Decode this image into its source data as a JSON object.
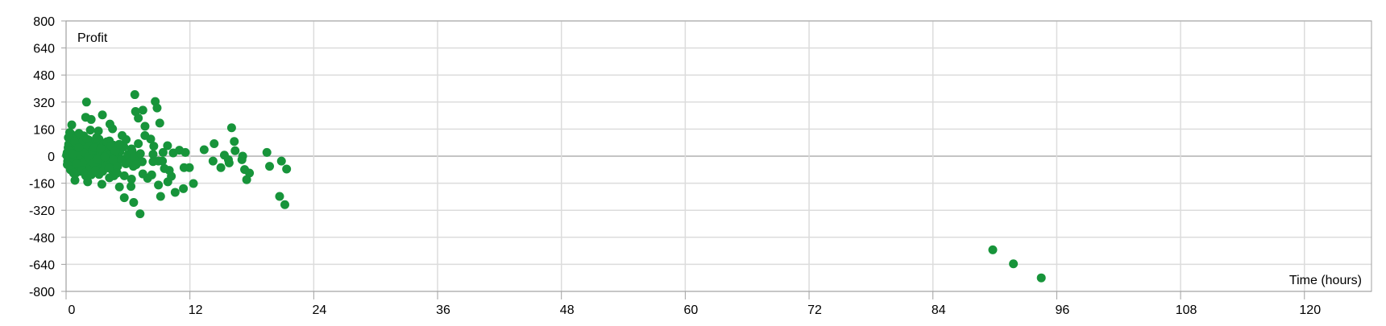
{
  "chart_data": {
    "type": "scatter",
    "ylabel": "Profit",
    "xlabel": "Time (hours)",
    "xlim": [
      0,
      126.5
    ],
    "ylim": [
      -800,
      800
    ],
    "xticks": [
      0,
      12,
      24,
      36,
      48,
      60,
      72,
      84,
      96,
      108,
      120
    ],
    "yticks": [
      800,
      640,
      480,
      320,
      160,
      0,
      -160,
      -320,
      -480,
      -640,
      -800
    ],
    "grid": true,
    "legend": "none",
    "point_color": "#17943a",
    "points": [
      [
        6.66,
        364
      ],
      [
        8.64,
        323
      ],
      [
        8.82,
        285
      ],
      [
        7.44,
        272
      ],
      [
        6.73,
        264
      ],
      [
        7.0,
        225
      ],
      [
        9.08,
        196
      ],
      [
        7.65,
        177
      ],
      [
        1.98,
        320
      ],
      [
        1.9,
        230
      ],
      [
        2.43,
        217
      ],
      [
        3.52,
        244
      ],
      [
        0.55,
        185
      ],
      [
        4.25,
        190
      ],
      [
        4.5,
        162
      ],
      [
        2.35,
        154
      ],
      [
        3.13,
        149
      ],
      [
        5.43,
        122
      ],
      [
        5.82,
        98
      ],
      [
        7.64,
        122
      ],
      [
        8.2,
        101
      ],
      [
        7.0,
        74
      ],
      [
        8.5,
        59
      ],
      [
        9.83,
        62
      ],
      [
        9.4,
        22
      ],
      [
        8.43,
        11
      ],
      [
        10.38,
        19
      ],
      [
        10.98,
        35
      ],
      [
        11.56,
        22
      ],
      [
        13.38,
        38
      ],
      [
        14.35,
        74
      ],
      [
        16.04,
        168
      ],
      [
        16.3,
        87
      ],
      [
        16.38,
        32
      ],
      [
        15.34,
        6
      ],
      [
        15.73,
        -21
      ],
      [
        15.8,
        -40
      ],
      [
        14.24,
        -29
      ],
      [
        15.0,
        -68
      ],
      [
        17.11,
        0
      ],
      [
        17.04,
        -21
      ],
      [
        17.3,
        -79
      ],
      [
        17.77,
        -100
      ],
      [
        17.5,
        -139
      ],
      [
        19.46,
        22
      ],
      [
        19.72,
        -60
      ],
      [
        20.87,
        -29
      ],
      [
        21.37,
        -76
      ],
      [
        20.69,
        -238
      ],
      [
        21.2,
        -287
      ],
      [
        12.34,
        -162
      ],
      [
        11.37,
        -192
      ],
      [
        10.57,
        -214
      ],
      [
        11.43,
        -68
      ],
      [
        11.95,
        -68
      ],
      [
        10.2,
        -119
      ],
      [
        9.86,
        -152
      ],
      [
        10.0,
        -84
      ],
      [
        9.53,
        -73
      ],
      [
        9.16,
        -238
      ],
      [
        8.95,
        -171
      ],
      [
        8.3,
        -111
      ],
      [
        7.9,
        -131
      ],
      [
        7.44,
        -105
      ],
      [
        7.17,
        -341
      ],
      [
        6.55,
        -274
      ],
      [
        5.64,
        -246
      ],
      [
        5.17,
        -182
      ],
      [
        6.29,
        -179
      ],
      [
        6.34,
        -136
      ],
      [
        5.64,
        -116
      ],
      [
        3.47,
        -166
      ],
      [
        4.2,
        -128
      ],
      [
        4.64,
        -116
      ],
      [
        2.09,
        -152
      ],
      [
        0.86,
        -143
      ],
      [
        1.9,
        -116
      ],
      [
        3.2,
        -108
      ],
      [
        7.38,
        -33
      ],
      [
        8.95,
        -29
      ],
      [
        9.34,
        -29
      ],
      [
        8.43,
        -32
      ],
      [
        6.52,
        -60
      ],
      [
        7.07,
        -21
      ],
      [
        6.34,
        43
      ],
      [
        5.82,
        -13
      ],
      [
        0.1,
        20
      ],
      [
        0.2,
        50
      ],
      [
        0.3,
        -10
      ],
      [
        0.4,
        90
      ],
      [
        0.5,
        130
      ],
      [
        0.6,
        -40
      ],
      [
        0.7,
        60
      ],
      [
        0.8,
        10
      ],
      [
        0.9,
        -70
      ],
      [
        1.0,
        110
      ],
      [
        1.1,
        30
      ],
      [
        1.2,
        -20
      ],
      [
        1.3,
        80
      ],
      [
        1.4,
        -90
      ],
      [
        1.5,
        40
      ],
      [
        1.6,
        0
      ],
      [
        1.7,
        120
      ],
      [
        1.8,
        -50
      ],
      [
        1.9,
        70
      ],
      [
        2.0,
        15
      ],
      [
        2.1,
        -30
      ],
      [
        2.2,
        95
      ],
      [
        2.3,
        -80
      ],
      [
        2.4,
        45
      ],
      [
        2.5,
        5
      ],
      [
        2.6,
        -60
      ],
      [
        2.7,
        85
      ],
      [
        2.8,
        25
      ],
      [
        2.9,
        -15
      ],
      [
        3.0,
        60
      ],
      [
        3.1,
        -45
      ],
      [
        3.2,
        100
      ],
      [
        3.3,
        0
      ],
      [
        3.4,
        -75
      ],
      [
        3.5,
        35
      ],
      [
        3.6,
        -25
      ],
      [
        3.7,
        75
      ],
      [
        3.8,
        10
      ],
      [
        3.9,
        -55
      ],
      [
        4.0,
        50
      ],
      [
        4.1,
        -10
      ],
      [
        4.2,
        90
      ],
      [
        4.3,
        -40
      ],
      [
        4.4,
        20
      ],
      [
        4.5,
        -85
      ],
      [
        4.6,
        65
      ],
      [
        4.7,
        0
      ],
      [
        4.8,
        -30
      ],
      [
        4.9,
        40
      ],
      [
        5.0,
        -60
      ],
      [
        5.2,
        25
      ],
      [
        5.4,
        -20
      ],
      [
        5.6,
        55
      ],
      [
        5.8,
        -45
      ],
      [
        6.0,
        10
      ],
      [
        6.2,
        -35
      ],
      [
        6.4,
        30
      ],
      [
        6.6,
        -5
      ],
      [
        6.8,
        -50
      ],
      [
        7.2,
        15
      ],
      [
        0.15,
        -30
      ],
      [
        0.25,
        70
      ],
      [
        0.35,
        140
      ],
      [
        0.45,
        -60
      ],
      [
        0.55,
        30
      ],
      [
        0.65,
        100
      ],
      [
        0.75,
        -15
      ],
      [
        0.85,
        45
      ],
      [
        0.95,
        -100
      ],
      [
        1.05,
        75
      ],
      [
        1.15,
        -55
      ],
      [
        1.25,
        135
      ],
      [
        1.35,
        5
      ],
      [
        1.45,
        55
      ],
      [
        1.55,
        -75
      ],
      [
        1.65,
        90
      ],
      [
        1.75,
        -35
      ],
      [
        1.85,
        20
      ],
      [
        1.95,
        -95
      ],
      [
        2.05,
        100
      ],
      [
        2.15,
        -5
      ],
      [
        2.25,
        60
      ],
      [
        2.35,
        -65
      ],
      [
        2.45,
        -110
      ],
      [
        2.55,
        35
      ],
      [
        2.65,
        -40
      ],
      [
        2.75,
        50
      ],
      [
        2.85,
        -85
      ],
      [
        2.95,
        110
      ],
      [
        3.05,
        -20
      ],
      [
        3.35,
        45
      ],
      [
        3.55,
        -90
      ],
      [
        3.75,
        -5
      ],
      [
        3.95,
        85
      ],
      [
        4.15,
        -70
      ],
      [
        4.35,
        60
      ],
      [
        4.55,
        -20
      ],
      [
        4.75,
        30
      ],
      [
        4.95,
        -100
      ],
      [
        5.15,
        70
      ],
      [
        0.05,
        5
      ],
      [
        0.12,
        -50
      ],
      [
        0.22,
        110
      ],
      [
        0.32,
        35
      ],
      [
        0.42,
        -80
      ],
      [
        0.62,
        15
      ],
      [
        0.72,
        -100
      ],
      [
        0.82,
        85
      ],
      [
        1.02,
        -45
      ],
      [
        1.22,
        50
      ],
      [
        89.8,
        -554
      ],
      [
        91.8,
        -637
      ],
      [
        94.5,
        -720
      ]
    ]
  }
}
